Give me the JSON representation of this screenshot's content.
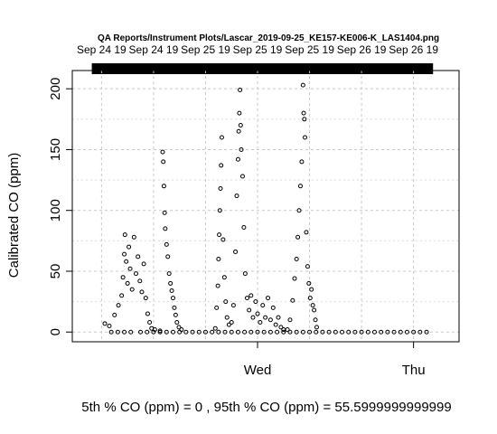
{
  "chart_data": {
    "type": "scatter",
    "title": "QA Reports/Instrument Plots/Lascar_2019-09-25_KE157-KE006-K_LAS1404.png",
    "ylabel": "Calibrated CO (ppm)",
    "xlabel": "",
    "ylim": [
      -8,
      215
    ],
    "y_ticks": [
      0,
      50,
      100,
      150,
      200
    ],
    "x_ticks": [
      "Wed",
      "Thu"
    ],
    "top_ticks": [
      "Sep 24 19",
      "Sep 24 19",
      "Sep 25 19",
      "Sep 25 19",
      "Sep 25 19",
      "Sep 26 19",
      "Sep 26 19"
    ],
    "grid": true,
    "marker": "open-circle",
    "footer": "5th % CO (ppm) =  0 , 95th % CO (ppm)  =  55.5999999999999",
    "x_unit": "hours since Sep 24 2019 00:00",
    "xlim": [
      -4.5,
      55
    ],
    "x_major_positions": [
      24,
      48
    ],
    "x_top_positions": [
      0,
      8,
      16,
      24,
      32,
      40,
      48
    ],
    "coverage_bar": [
      -1.5,
      51
    ],
    "series": [
      {
        "values": [
          [
            1.5,
            0
          ],
          [
            2.5,
            0
          ],
          [
            3.5,
            0
          ],
          [
            4.5,
            0
          ],
          [
            6,
            0
          ],
          [
            7,
            0
          ],
          [
            8,
            0
          ],
          [
            9,
            0
          ],
          [
            10,
            0
          ],
          [
            11,
            0
          ],
          [
            12,
            0
          ],
          [
            13,
            0
          ],
          [
            14,
            0
          ],
          [
            15,
            0
          ],
          [
            16,
            0
          ],
          [
            17,
            0
          ],
          [
            18,
            0
          ],
          [
            19,
            0
          ],
          [
            20,
            0
          ],
          [
            21,
            0
          ],
          [
            22,
            0
          ],
          [
            23,
            0
          ],
          [
            24,
            0
          ],
          [
            25,
            0
          ],
          [
            26,
            0
          ],
          [
            27,
            0
          ],
          [
            28,
            0
          ],
          [
            29,
            0
          ],
          [
            30,
            0
          ],
          [
            31,
            0
          ],
          [
            32,
            0
          ],
          [
            33,
            0
          ],
          [
            34,
            0
          ],
          [
            35,
            0
          ],
          [
            36,
            0
          ],
          [
            37,
            0
          ],
          [
            38,
            0
          ],
          [
            39,
            0
          ],
          [
            40,
            0
          ],
          [
            41,
            0
          ],
          [
            42,
            0
          ],
          [
            43,
            0
          ],
          [
            44,
            0
          ],
          [
            45,
            0
          ],
          [
            46,
            0
          ],
          [
            47,
            0
          ],
          [
            48,
            0
          ],
          [
            49,
            0
          ],
          [
            50,
            0
          ],
          [
            0.5,
            7
          ],
          [
            1.2,
            5
          ],
          [
            2,
            14
          ],
          [
            2.6,
            22
          ],
          [
            3.1,
            30
          ],
          [
            3.3,
            45
          ],
          [
            3.5,
            64
          ],
          [
            3.6,
            80
          ],
          [
            3.8,
            58
          ],
          [
            4,
            40
          ],
          [
            4.2,
            70
          ],
          [
            4.4,
            52
          ],
          [
            4.7,
            35
          ],
          [
            5,
            78
          ],
          [
            5.3,
            48
          ],
          [
            5.6,
            62
          ],
          [
            5.9,
            42
          ],
          [
            6.2,
            33
          ],
          [
            6.5,
            56
          ],
          [
            6.8,
            28
          ],
          [
            7.1,
            15
          ],
          [
            7.4,
            8
          ],
          [
            7.7,
            3
          ],
          [
            8.2,
            2
          ],
          [
            9,
            1
          ],
          [
            9.4,
            148
          ],
          [
            9.5,
            140
          ],
          [
            9.6,
            120
          ],
          [
            9.7,
            98
          ],
          [
            9.8,
            85
          ],
          [
            10,
            72
          ],
          [
            10.2,
            62
          ],
          [
            10.4,
            48
          ],
          [
            10.6,
            40
          ],
          [
            10.8,
            34
          ],
          [
            11,
            28
          ],
          [
            11.2,
            20
          ],
          [
            11.4,
            14
          ],
          [
            11.6,
            8
          ],
          [
            11.9,
            4
          ],
          [
            12.3,
            2
          ],
          [
            17.5,
            3
          ],
          [
            17.7,
            20
          ],
          [
            17.9,
            38
          ],
          [
            18,
            60
          ],
          [
            18.1,
            80
          ],
          [
            18.2,
            100
          ],
          [
            18.3,
            118
          ],
          [
            18.4,
            137
          ],
          [
            18.5,
            160
          ],
          [
            18.7,
            76
          ],
          [
            18.9,
            45
          ],
          [
            19.1,
            25
          ],
          [
            19.3,
            12
          ],
          [
            19.6,
            6
          ],
          [
            20,
            8
          ],
          [
            20.3,
            22
          ],
          [
            20.6,
            66
          ],
          [
            20.8,
            112
          ],
          [
            21,
            142
          ],
          [
            21.1,
            165
          ],
          [
            21.2,
            180
          ],
          [
            21.3,
            199
          ],
          [
            21.4,
            170
          ],
          [
            21.5,
            150
          ],
          [
            21.7,
            128
          ],
          [
            21.9,
            86
          ],
          [
            22.1,
            48
          ],
          [
            22.4,
            28
          ],
          [
            22.7,
            18
          ],
          [
            23,
            30
          ],
          [
            23.3,
            12
          ],
          [
            23.7,
            25
          ],
          [
            24,
            15
          ],
          [
            24.4,
            8
          ],
          [
            24.8,
            22
          ],
          [
            25.2,
            12
          ],
          [
            25.6,
            28
          ],
          [
            26,
            10
          ],
          [
            26.4,
            20
          ],
          [
            26.8,
            6
          ],
          [
            27.2,
            12
          ],
          [
            27.6,
            4
          ],
          [
            28,
            2
          ],
          [
            28.6,
            2
          ],
          [
            29,
            10
          ],
          [
            29.4,
            26
          ],
          [
            29.7,
            44
          ],
          [
            30,
            60
          ],
          [
            30.2,
            78
          ],
          [
            30.4,
            100
          ],
          [
            30.6,
            120
          ],
          [
            30.8,
            140
          ],
          [
            31,
            203
          ],
          [
            31.1,
            180
          ],
          [
            31.2,
            175
          ],
          [
            31.3,
            160
          ],
          [
            31.5,
            82
          ],
          [
            31.7,
            54
          ],
          [
            31.9,
            40
          ],
          [
            32.1,
            28
          ],
          [
            32.3,
            35
          ],
          [
            32.5,
            22
          ],
          [
            32.7,
            18
          ],
          [
            32.9,
            10
          ],
          [
            33.1,
            4
          ]
        ]
      }
    ]
  }
}
